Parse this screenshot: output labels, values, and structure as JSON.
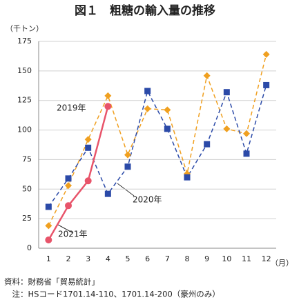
{
  "chart_data": {
    "type": "line",
    "title": "図１　粗糖の輸入量の推移",
    "y_label": "（千トン）",
    "x_label": "（月）",
    "categories": [
      "1",
      "2",
      "3",
      "4",
      "5",
      "6",
      "7",
      "8",
      "9",
      "10",
      "11",
      "12"
    ],
    "series": [
      {
        "name": "2019年",
        "color": "#f0a020",
        "marker": "diamond",
        "dash": true,
        "values": [
          19,
          53,
          92,
          129,
          79,
          118,
          117,
          63,
          146,
          101,
          97,
          164
        ]
      },
      {
        "name": "2020年",
        "color": "#2b4aa8",
        "marker": "square",
        "dash": true,
        "values": [
          35,
          59,
          85,
          46,
          69,
          133,
          101,
          60,
          88,
          132,
          80,
          138
        ]
      },
      {
        "name": "2021年",
        "color": "#e8546a",
        "marker": "circle",
        "dash": false,
        "values": [
          7,
          36,
          57,
          120,
          null,
          null,
          null,
          null,
          null,
          null,
          null,
          null
        ]
      }
    ],
    "ylim": [
      0,
      175
    ],
    "yticks": [
      0,
      25,
      50,
      75,
      100,
      125,
      150,
      175
    ],
    "grid": true,
    "source": [
      "資料：財務省「貿易統計」",
      "　注：HSコード1701.14-110、1701.14-200（豪州のみ）"
    ]
  }
}
